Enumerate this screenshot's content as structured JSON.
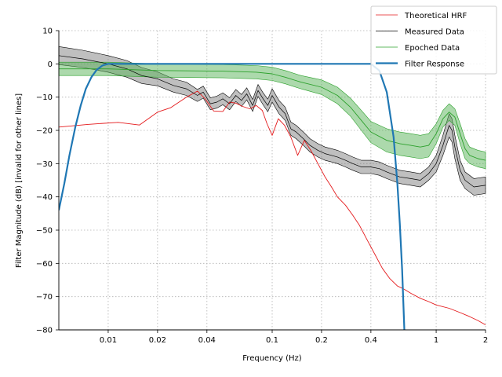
{
  "chart_data": {
    "type": "line",
    "title": "",
    "xlabel": "Frequency (Hz)",
    "ylabel": "Filter Magnitude (dB) [invalid for other lines]",
    "xscale": "log",
    "xlim": [
      0.005,
      2
    ],
    "ylim": [
      -80,
      10
    ],
    "grid": true,
    "legend_position": "top-right",
    "x_ticks": [
      {
        "value": 0.01,
        "label": "0.01"
      },
      {
        "value": 0.02,
        "label": "0.02"
      },
      {
        "value": 0.04,
        "label": "0.04"
      },
      {
        "value": 0.1,
        "label": "0.1"
      },
      {
        "value": 0.2,
        "label": "0.2"
      },
      {
        "value": 0.4,
        "label": "0.4"
      },
      {
        "value": 1,
        "label": "1"
      },
      {
        "value": 2,
        "label": "2"
      }
    ],
    "y_ticks": [
      {
        "value": 10,
        "label": "10"
      },
      {
        "value": 0,
        "label": "0"
      },
      {
        "value": -10,
        "label": "−10"
      },
      {
        "value": -20,
        "label": "−20"
      },
      {
        "value": -30,
        "label": "−30"
      },
      {
        "value": -40,
        "label": "−40"
      },
      {
        "value": -50,
        "label": "−50"
      },
      {
        "value": -60,
        "label": "−60"
      },
      {
        "value": -70,
        "label": "−70"
      },
      {
        "value": -80,
        "label": "−80"
      }
    ],
    "series": [
      {
        "name": "Theoretical HRF",
        "color": "#e41a1c",
        "x": [
          0.005,
          0.0075,
          0.0115,
          0.0155,
          0.02,
          0.024,
          0.03,
          0.035,
          0.039,
          0.044,
          0.05,
          0.055,
          0.06,
          0.066,
          0.073,
          0.08,
          0.087,
          0.093,
          0.1,
          0.109,
          0.119,
          0.13,
          0.143,
          0.157,
          0.172,
          0.19,
          0.21,
          0.23,
          0.25,
          0.28,
          0.31,
          0.34,
          0.38,
          0.42,
          0.47,
          0.52,
          0.58,
          0.64,
          0.7,
          0.8,
          0.9,
          1.0,
          1.2,
          1.4,
          1.6,
          1.8,
          2.0
        ],
        "values": [
          -19,
          -18.2,
          -17.6,
          -18.4,
          -14.5,
          -13.2,
          -10.0,
          -8.2,
          -10.5,
          -14.2,
          -14.3,
          -11.5,
          -11.8,
          -12.8,
          -13.5,
          -12.5,
          -14.0,
          -18.0,
          -21.5,
          -16.5,
          -18.5,
          -22.0,
          -27.5,
          -23.0,
          -26.0,
          -30.0,
          -34.0,
          -37.0,
          -40.0,
          -42.5,
          -45.5,
          -48.5,
          -53.0,
          -57.0,
          -61.5,
          -64.5,
          -66.8,
          -67.8,
          -69.0,
          -70.5,
          -71.5,
          -72.5,
          -73.5,
          -74.8,
          -76.0,
          -77.2,
          -78.5
        ]
      },
      {
        "name": "Measured Data",
        "color": "#000000",
        "band_color": "#808080",
        "x": [
          0.005,
          0.007,
          0.01,
          0.013,
          0.016,
          0.02,
          0.025,
          0.03,
          0.035,
          0.038,
          0.042,
          0.046,
          0.05,
          0.055,
          0.06,
          0.065,
          0.07,
          0.076,
          0.082,
          0.088,
          0.094,
          0.1,
          0.11,
          0.12,
          0.13,
          0.14,
          0.155,
          0.17,
          0.19,
          0.21,
          0.23,
          0.25,
          0.28,
          0.31,
          0.35,
          0.4,
          0.45,
          0.5,
          0.6,
          0.7,
          0.8,
          0.9,
          1.0,
          1.1,
          1.2,
          1.25,
          1.3,
          1.4,
          1.5,
          1.7,
          2.0
        ],
        "values": [
          2.5,
          1.5,
          0.0,
          -1.5,
          -3.5,
          -4.5,
          -6.5,
          -7.5,
          -9.5,
          -8.5,
          -12.0,
          -11.5,
          -10.5,
          -12.0,
          -9.5,
          -11.0,
          -9.0,
          -12.5,
          -8.0,
          -10.5,
          -12.5,
          -9.5,
          -13.0,
          -15.0,
          -19.5,
          -20.5,
          -22.5,
          -24.5,
          -26.0,
          -27.0,
          -27.5,
          -28.0,
          -29.0,
          -30.0,
          -31.0,
          -31.0,
          -31.5,
          -32.5,
          -34.0,
          -34.5,
          -35.0,
          -33.0,
          -30.0,
          -24.5,
          -18.5,
          -20.0,
          -25.0,
          -32.0,
          -35.0,
          -37.0,
          -36.5
        ],
        "band_halfwidth": [
          2.7,
          2.6,
          2.5,
          2.5,
          2.4,
          2.1,
          2.0,
          2.0,
          1.8,
          1.8,
          1.8,
          1.8,
          1.8,
          1.8,
          1.8,
          1.8,
          1.8,
          1.8,
          1.8,
          1.8,
          1.9,
          2.0,
          2.0,
          2.0,
          2.0,
          2.0,
          2.0,
          2.0,
          2.0,
          2.0,
          2.0,
          2.0,
          2.0,
          2.0,
          2.0,
          2.0,
          2.0,
          2.0,
          2.0,
          2.0,
          2.0,
          2.0,
          2.5,
          3.0,
          3.5,
          3.5,
          3.5,
          3.0,
          2.5,
          2.5,
          2.5
        ]
      },
      {
        "name": "Epoched Data",
        "color": "#2ca02c",
        "band_color": "#5ab45a",
        "x": [
          0.005,
          0.01,
          0.02,
          0.05,
          0.08,
          0.1,
          0.12,
          0.15,
          0.2,
          0.25,
          0.3,
          0.35,
          0.4,
          0.5,
          0.6,
          0.7,
          0.8,
          0.9,
          1.0,
          1.1,
          1.2,
          1.3,
          1.4,
          1.5,
          1.6,
          1.8,
          2.0
        ],
        "values": [
          -1.5,
          -1.5,
          -2.0,
          -2.2,
          -2.5,
          -3.0,
          -4.0,
          -5.5,
          -7.0,
          -9.5,
          -13.0,
          -17.0,
          -20.5,
          -23.0,
          -24.0,
          -24.5,
          -25.0,
          -24.5,
          -21.0,
          -16.5,
          -14.5,
          -16.0,
          -21.0,
          -25.5,
          -27.5,
          -28.5,
          -29.0
        ],
        "band_halfwidth": [
          2.0,
          2.0,
          2.0,
          2.0,
          2.0,
          2.0,
          2.0,
          2.0,
          2.2,
          2.5,
          2.7,
          3.0,
          3.2,
          3.5,
          3.5,
          3.5,
          3.5,
          3.5,
          3.0,
          2.5,
          2.5,
          2.5,
          3.0,
          3.0,
          2.5,
          2.5,
          2.5
        ]
      },
      {
        "name": "Filter Response",
        "color": "#1f77b4",
        "x": [
          0.005,
          0.0054,
          0.0058,
          0.0063,
          0.0068,
          0.0073,
          0.0079,
          0.0085,
          0.0092,
          0.01,
          0.011,
          0.012,
          0.02,
          0.05,
          0.1,
          0.2,
          0.3,
          0.4,
          0.45,
          0.5,
          0.55,
          0.58,
          0.6,
          0.62,
          0.64
        ],
        "values": [
          -44,
          -36,
          -27.5,
          -19,
          -12.5,
          -7.5,
          -4.0,
          -1.8,
          -0.5,
          0.0,
          0.0,
          0.0,
          0.0,
          0.0,
          0.0,
          0.0,
          0.0,
          0.0,
          -2.0,
          -8.5,
          -22.0,
          -36.0,
          -48.0,
          -62.0,
          -80.0
        ]
      }
    ]
  }
}
